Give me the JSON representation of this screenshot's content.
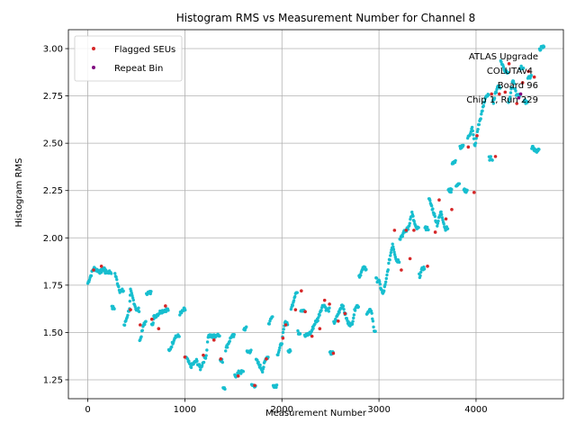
{
  "chart_data": {
    "type": "scatter",
    "title": "Histogram RMS vs Measurement Number for Channel 8",
    "xlabel": "Measurement Number",
    "ylabel": "Histogram RMS",
    "xlim": [
      -200,
      4900
    ],
    "ylim": [
      1.15,
      3.1
    ],
    "xticks": [
      0,
      1000,
      2000,
      3000,
      4000
    ],
    "yticks": [
      1.25,
      1.5,
      1.75,
      2.0,
      2.25,
      2.5,
      2.75,
      3.0
    ],
    "xtick_labels": [
      "0",
      "1000",
      "2000",
      "3000",
      "4000"
    ],
    "ytick_labels": [
      "1.25",
      "1.50",
      "1.75",
      "2.00",
      "2.25",
      "2.50",
      "2.75",
      "3.00"
    ],
    "grid": true,
    "legend_position": "top-left",
    "annotation_lines": [
      "ATLAS Upgrade",
      "COLUTAv4",
      "Board 96",
      "Chip 1, Run 229"
    ],
    "colors": {
      "data": "#17becf",
      "flagged": "#d62728",
      "repeat": "#800080"
    },
    "series": [
      {
        "name": "data",
        "role": "main",
        "segments": [
          [
            0,
            1.76
          ],
          [
            60,
            1.84
          ],
          [
            130,
            1.82
          ],
          [
            170,
            1.84
          ],
          [
            180,
            1.82
          ],
          [
            260,
            1.63
          ],
          [
            280,
            1.81
          ],
          [
            330,
            1.72
          ],
          [
            380,
            1.54
          ],
          [
            430,
            1.63
          ],
          [
            440,
            1.72
          ],
          [
            500,
            1.62
          ],
          [
            540,
            1.46
          ],
          [
            580,
            1.55
          ],
          [
            610,
            1.71
          ],
          [
            670,
            1.55
          ],
          [
            680,
            1.58
          ],
          [
            750,
            1.61
          ],
          [
            800,
            1.62
          ],
          [
            840,
            1.4
          ],
          [
            900,
            1.48
          ],
          [
            960,
            1.6
          ],
          [
            990,
            1.62
          ],
          [
            1010,
            1.37
          ],
          [
            1060,
            1.32
          ],
          [
            1120,
            1.35
          ],
          [
            1160,
            1.31
          ],
          [
            1220,
            1.38
          ],
          [
            1240,
            1.48
          ],
          [
            1300,
            1.48
          ],
          [
            1340,
            1.49
          ],
          [
            1370,
            1.35
          ],
          [
            1400,
            1.21
          ],
          [
            1420,
            1.41
          ],
          [
            1480,
            1.48
          ],
          [
            1520,
            1.27
          ],
          [
            1560,
            1.29
          ],
          [
            1620,
            1.52
          ],
          [
            1640,
            1.4
          ],
          [
            1700,
            1.22
          ],
          [
            1740,
            1.35
          ],
          [
            1800,
            1.3
          ],
          [
            1840,
            1.37
          ],
          [
            1870,
            1.55
          ],
          [
            1890,
            1.58
          ],
          [
            1910,
            1.22
          ],
          [
            1960,
            1.39
          ],
          [
            2000,
            1.45
          ],
          [
            2030,
            1.55
          ],
          [
            2070,
            1.4
          ],
          [
            2100,
            1.63
          ],
          [
            2140,
            1.71
          ],
          [
            2170,
            1.5
          ],
          [
            2200,
            1.62
          ],
          [
            2240,
            1.48
          ],
          [
            2300,
            1.5
          ],
          [
            2340,
            1.55
          ],
          [
            2370,
            1.57
          ],
          [
            2400,
            1.62
          ],
          [
            2430,
            1.65
          ],
          [
            2460,
            1.62
          ],
          [
            2500,
            1.39
          ],
          [
            2540,
            1.55
          ],
          [
            2580,
            1.6
          ],
          [
            2620,
            1.65
          ],
          [
            2680,
            1.55
          ],
          [
            2720,
            1.54
          ],
          [
            2760,
            1.64
          ],
          [
            2800,
            1.8
          ],
          [
            2840,
            1.84
          ],
          [
            2880,
            1.6
          ],
          [
            2920,
            1.62
          ],
          [
            2950,
            1.51
          ],
          [
            2970,
            1.78
          ],
          [
            3000,
            1.77
          ],
          [
            3040,
            1.7
          ],
          [
            3070,
            1.76
          ],
          [
            3100,
            1.86
          ],
          [
            3140,
            1.97
          ],
          [
            3180,
            1.88
          ],
          [
            3220,
            2.0
          ],
          [
            3260,
            2.03
          ],
          [
            3300,
            2.05
          ],
          [
            3340,
            2.13
          ],
          [
            3380,
            2.05
          ],
          [
            3420,
            1.8
          ],
          [
            3450,
            1.84
          ],
          [
            3480,
            2.05
          ],
          [
            3520,
            2.2
          ],
          [
            3560,
            2.14
          ],
          [
            3600,
            2.07
          ],
          [
            3640,
            2.14
          ],
          [
            3680,
            2.05
          ],
          [
            3720,
            2.25
          ],
          [
            3760,
            2.4
          ],
          [
            3800,
            2.28
          ],
          [
            3840,
            2.48
          ],
          [
            3880,
            2.25
          ],
          [
            3920,
            2.53
          ],
          [
            3960,
            2.58
          ],
          [
            3990,
            2.48
          ],
          [
            4020,
            2.58
          ],
          [
            4060,
            2.66
          ],
          [
            4100,
            2.75
          ],
          [
            4140,
            2.42
          ],
          [
            4180,
            2.72
          ],
          [
            4220,
            2.8
          ],
          [
            4260,
            2.93
          ],
          [
            4300,
            2.88
          ],
          [
            4340,
            2.72
          ],
          [
            4380,
            2.83
          ],
          [
            4420,
            2.75
          ],
          [
            4460,
            2.9
          ],
          [
            4500,
            2.72
          ],
          [
            4540,
            2.85
          ],
          [
            4580,
            2.48
          ],
          [
            4620,
            2.46
          ],
          [
            4660,
            3.0
          ],
          [
            4700,
            3.01
          ]
        ]
      },
      {
        "name": "Flagged SEUs",
        "role": "flagged",
        "points": [
          [
            60,
            1.83
          ],
          [
            140,
            1.85
          ],
          [
            440,
            1.62
          ],
          [
            540,
            1.54
          ],
          [
            660,
            1.57
          ],
          [
            730,
            1.52
          ],
          [
            800,
            1.64
          ],
          [
            1000,
            1.37
          ],
          [
            1190,
            1.38
          ],
          [
            1300,
            1.46
          ],
          [
            1370,
            1.36
          ],
          [
            1550,
            1.27
          ],
          [
            1720,
            1.22
          ],
          [
            1840,
            1.36
          ],
          [
            2010,
            1.47
          ],
          [
            2040,
            1.54
          ],
          [
            2140,
            1.62
          ],
          [
            2200,
            1.72
          ],
          [
            2240,
            1.61
          ],
          [
            2310,
            1.48
          ],
          [
            2390,
            1.52
          ],
          [
            2440,
            1.67
          ],
          [
            2490,
            1.65
          ],
          [
            2530,
            1.39
          ],
          [
            2580,
            1.56
          ],
          [
            2650,
            1.6
          ],
          [
            3160,
            2.04
          ],
          [
            3230,
            1.83
          ],
          [
            3280,
            2.04
          ],
          [
            3320,
            1.89
          ],
          [
            3360,
            2.04
          ],
          [
            3500,
            1.85
          ],
          [
            3580,
            2.03
          ],
          [
            3620,
            2.2
          ],
          [
            3690,
            2.1
          ],
          [
            3750,
            2.15
          ],
          [
            3920,
            2.48
          ],
          [
            3980,
            2.24
          ],
          [
            4010,
            2.54
          ],
          [
            4160,
            2.76
          ],
          [
            4200,
            2.43
          ],
          [
            4240,
            2.76
          ],
          [
            4300,
            2.77
          ],
          [
            4340,
            2.92
          ],
          [
            4420,
            2.71
          ],
          [
            4480,
            2.82
          ],
          [
            4540,
            2.88
          ],
          [
            4600,
            2.85
          ]
        ]
      },
      {
        "name": "Repeat Bin",
        "role": "repeat",
        "points": [
          [
            4440,
            2.74
          ],
          [
            4460,
            2.76
          ]
        ]
      }
    ]
  },
  "legend": {
    "items": [
      {
        "label": "Flagged SEUs",
        "color": "#d62728"
      },
      {
        "label": "Repeat Bin",
        "color": "#800080"
      }
    ]
  }
}
